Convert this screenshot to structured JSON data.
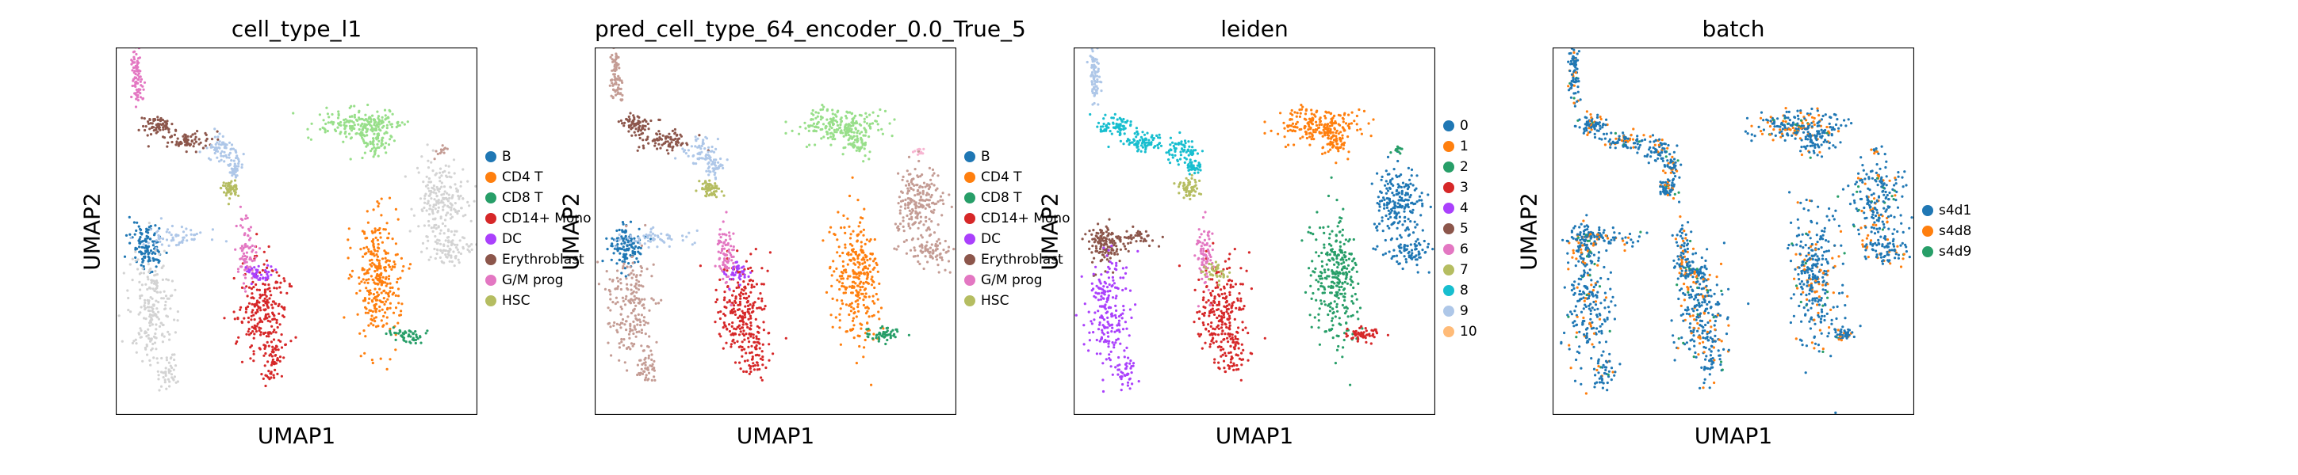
{
  "figure": {
    "panels": [
      {
        "title": "cell_type_l1",
        "xlabel": "UMAP1",
        "ylabel": "UMAP2",
        "legend": [
          {
            "label": "B",
            "color": "#1f77b4"
          },
          {
            "label": "CD4 T",
            "color": "#ff7f0e"
          },
          {
            "label": "CD8 T",
            "color": "#279e68"
          },
          {
            "label": "CD14+ Mono",
            "color": "#d62728"
          },
          {
            "label": "DC",
            "color": "#aa40fc"
          },
          {
            "label": "Erythroblast",
            "color": "#8c564b"
          },
          {
            "label": "G/M prog",
            "color": "#e377c2"
          },
          {
            "label": "HSC",
            "color": "#b5bd61"
          }
        ]
      },
      {
        "title": "pred_cell_type_64_encoder_0.0_True_5",
        "xlabel": "UMAP1",
        "ylabel": "UMAP2",
        "legend": [
          {
            "label": "B",
            "color": "#1f77b4"
          },
          {
            "label": "CD4 T",
            "color": "#ff7f0e"
          },
          {
            "label": "CD8 T",
            "color": "#279e68"
          },
          {
            "label": "CD14+ Mono",
            "color": "#d62728"
          },
          {
            "label": "DC",
            "color": "#aa40fc"
          },
          {
            "label": "Erythroblast",
            "color": "#8c564b"
          },
          {
            "label": "G/M prog",
            "color": "#e377c2"
          },
          {
            "label": "HSC",
            "color": "#b5bd61"
          }
        ]
      },
      {
        "title": "leiden",
        "xlabel": "UMAP1",
        "ylabel": "UMAP2",
        "legend": [
          {
            "label": "0",
            "color": "#1f77b4"
          },
          {
            "label": "1",
            "color": "#ff7f0e"
          },
          {
            "label": "2",
            "color": "#279e68"
          },
          {
            "label": "3",
            "color": "#d62728"
          },
          {
            "label": "4",
            "color": "#aa40fc"
          },
          {
            "label": "5",
            "color": "#8c564b"
          },
          {
            "label": "6",
            "color": "#e377c2"
          },
          {
            "label": "7",
            "color": "#b5bd61"
          },
          {
            "label": "8",
            "color": "#17becf"
          },
          {
            "label": "9",
            "color": "#aec7e8"
          },
          {
            "label": "10",
            "color": "#ffbb78"
          }
        ]
      },
      {
        "title": "batch",
        "xlabel": "UMAP1",
        "ylabel": "UMAP2",
        "legend": [
          {
            "label": "s4d1",
            "color": "#1f77b4"
          },
          {
            "label": "s4d8",
            "color": "#ff7f0e"
          },
          {
            "label": "s4d9",
            "color": "#279e68"
          }
        ]
      }
    ]
  },
  "chart_data": [
    {
      "type": "scatter",
      "title": "cell_type_l1",
      "xlabel": "UMAP1",
      "ylabel": "UMAP2",
      "ticks": "none",
      "grid": false,
      "legend_position": "right",
      "series": [
        {
          "name": "B",
          "color": "#1f77b4"
        },
        {
          "name": "CD4 T",
          "color": "#ff7f0e"
        },
        {
          "name": "CD8 T",
          "color": "#279e68"
        },
        {
          "name": "CD14+ Mono",
          "color": "#d62728"
        },
        {
          "name": "DC",
          "color": "#aa40fc"
        },
        {
          "name": "Erythroblast",
          "color": "#8c564b"
        },
        {
          "name": "G/M prog",
          "color": "#e377c2"
        },
        {
          "name": "HSC",
          "color": "#b5bd61"
        }
      ],
      "unlabeled_color": "#d3d3d3"
    },
    {
      "type": "scatter",
      "title": "pred_cell_type_64_encoder_0.0_True_5",
      "xlabel": "UMAP1",
      "ylabel": "UMAP2",
      "ticks": "none",
      "grid": false,
      "legend_position": "right",
      "series": [
        {
          "name": "B",
          "color": "#1f77b4"
        },
        {
          "name": "CD4 T",
          "color": "#ff7f0e"
        },
        {
          "name": "CD8 T",
          "color": "#279e68"
        },
        {
          "name": "CD14+ Mono",
          "color": "#d62728"
        },
        {
          "name": "DC",
          "color": "#aa40fc"
        },
        {
          "name": "Erythroblast",
          "color": "#8c564b"
        },
        {
          "name": "G/M prog",
          "color": "#e377c2"
        },
        {
          "name": "HSC",
          "color": "#b5bd61"
        }
      ]
    },
    {
      "type": "scatter",
      "title": "leiden",
      "xlabel": "UMAP1",
      "ylabel": "UMAP2",
      "ticks": "none",
      "grid": false,
      "legend_position": "right",
      "series": [
        {
          "name": "0",
          "color": "#1f77b4"
        },
        {
          "name": "1",
          "color": "#ff7f0e"
        },
        {
          "name": "2",
          "color": "#279e68"
        },
        {
          "name": "3",
          "color": "#d62728"
        },
        {
          "name": "4",
          "color": "#aa40fc"
        },
        {
          "name": "5",
          "color": "#8c564b"
        },
        {
          "name": "6",
          "color": "#e377c2"
        },
        {
          "name": "7",
          "color": "#b5bd61"
        },
        {
          "name": "8",
          "color": "#17becf"
        },
        {
          "name": "9",
          "color": "#aec7e8"
        },
        {
          "name": "10",
          "color": "#ffbb78"
        }
      ]
    },
    {
      "type": "scatter",
      "title": "batch",
      "xlabel": "UMAP1",
      "ylabel": "UMAP2",
      "ticks": "none",
      "grid": false,
      "legend_position": "right",
      "series": [
        {
          "name": "s4d1",
          "color": "#1f77b4"
        },
        {
          "name": "s4d8",
          "color": "#ff7f0e"
        },
        {
          "name": "s4d9",
          "color": "#279e68"
        }
      ]
    }
  ]
}
